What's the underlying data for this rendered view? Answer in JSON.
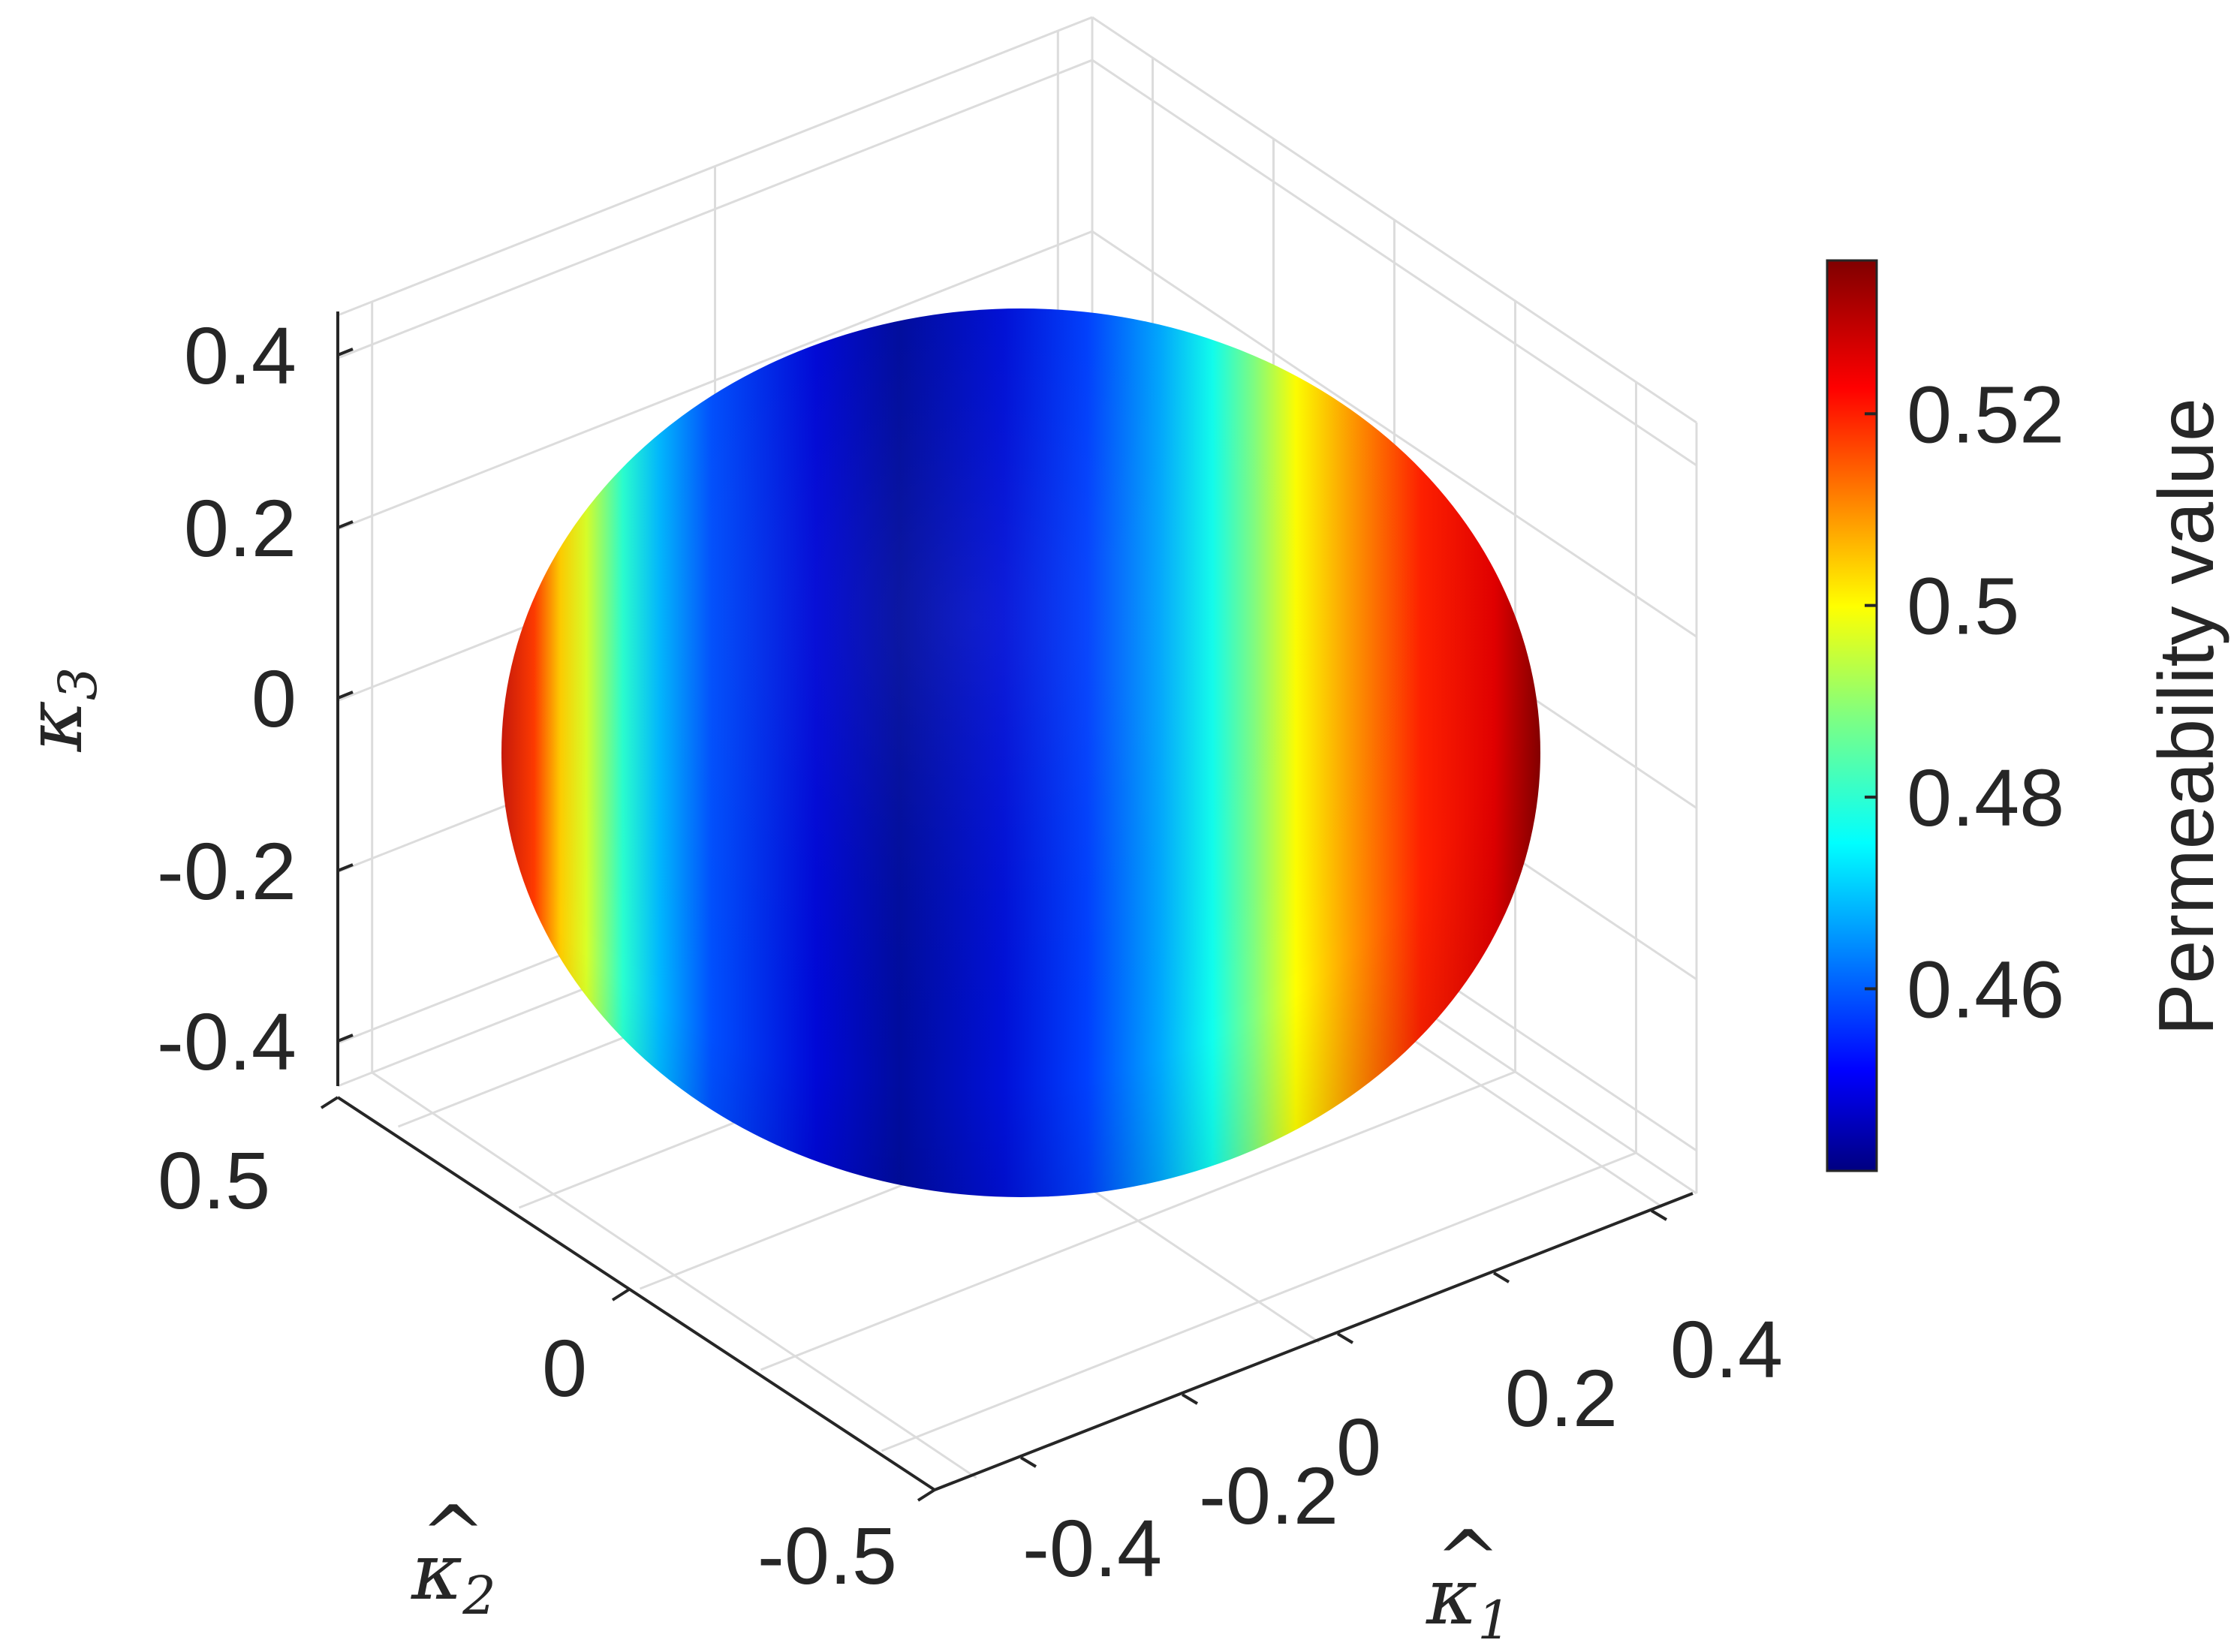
{
  "chart_data": {
    "type": "surface3d",
    "title": "",
    "shape": "ellipsoid",
    "colormap": "jet",
    "axes": {
      "x": {
        "label": "κ̂1",
        "symbol": "κ",
        "subscript": "1",
        "ticks": [
          "-0.4",
          "-0.2",
          "0",
          "0.2",
          "0.4"
        ],
        "tick_values": [
          -0.4,
          -0.2,
          0,
          0.2,
          0.4
        ],
        "range": [
          -0.5,
          0.5
        ]
      },
      "y": {
        "label": "κ̂2",
        "symbol": "κ",
        "subscript": "2",
        "ticks": [
          "-0.5",
          "0",
          "0.5"
        ],
        "tick_values": [
          -0.5,
          0,
          0.5
        ],
        "range": [
          -0.55,
          0.55
        ]
      },
      "z": {
        "label": "κ̂3",
        "symbol": "κ",
        "subscript": "3",
        "ticks": [
          "-0.4",
          "-0.2",
          "0",
          "0.2",
          "0.4"
        ],
        "tick_values": [
          -0.4,
          -0.2,
          0,
          0.2,
          0.4
        ],
        "range": [
          -0.45,
          0.45
        ]
      }
    },
    "grid": true,
    "colorbar": {
      "label": "Permeability value",
      "ticks": [
        "0.46",
        "0.48",
        "0.5",
        "0.52"
      ],
      "tick_values": [
        0.46,
        0.48,
        0.5,
        0.52
      ],
      "range": [
        0.441,
        0.536
      ],
      "placement": "right"
    },
    "surface": {
      "value_min": 0.441,
      "value_max": 0.536,
      "max_direction": "+κ1",
      "min_direction": "κ2 (perpendicular to κ1)"
    }
  }
}
